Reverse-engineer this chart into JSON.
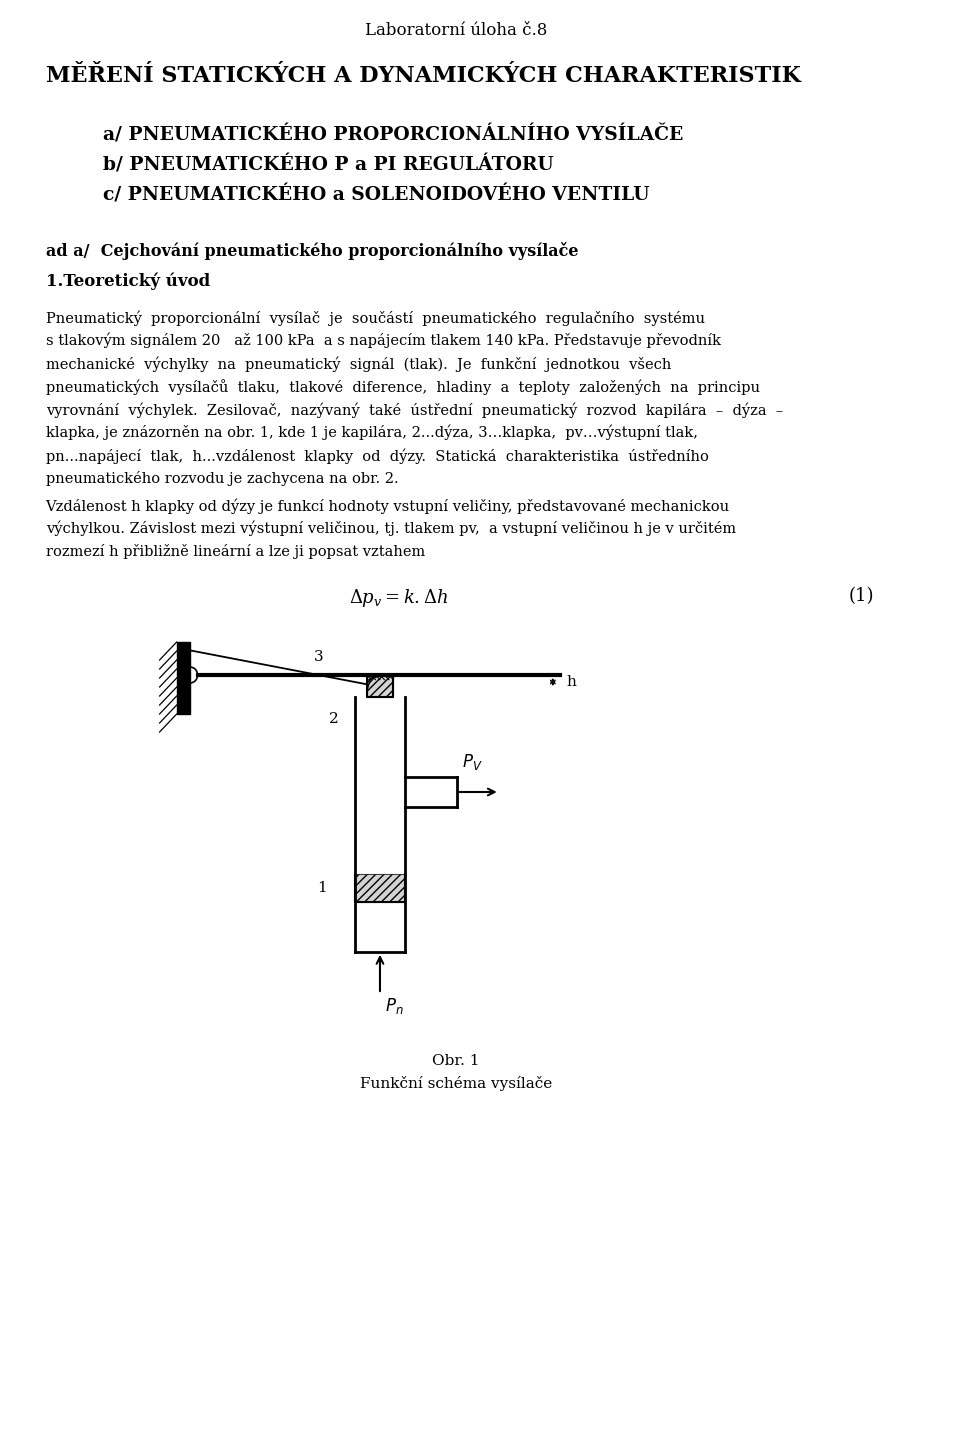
{
  "background_color": "#ffffff",
  "page_width": 9.6,
  "page_height": 14.48,
  "line1": "Laboratorní úloha č.8",
  "line1_size": 12,
  "title1": "MĚŘENÍ STATICKÝCH A DYNAMICKÝCH CHARAKTERISTIK",
  "title1_size": 16,
  "subtitle_a": "a/ PNEUMATICKÉHO PROPORCIONÁLNÍHO VYSÍLAČE",
  "subtitle_b": "b/ PNEUMATICKÉHO P a PI REGULÁTORU",
  "subtitle_c": "c/ PNEUMATICKÉHO a SOLENOIDOVÉHO VENTILU",
  "subtitle_size": 13.5,
  "section_label": "ad a/  Cejchování pneumatického proporcionálního vysílače",
  "section_label_size": 11.5,
  "section_header": "1.Teoretický úvod",
  "section_header_size": 12,
  "para1_lines": [
    "Pneumatický  proporcionální  vysílač  je  součástí  pneumatického  regulačního  systému",
    "s tlakovým signálem 20   až 100 kPa  a s napájecím tlakem 140 kPa. Představuje převodník",
    "mechanické  výchylky  na  pneumatický  signál  (tlak).  Je  funkční  jednotkou  všech",
    "pneumatických  vysílačů  tlaku,  tlakové  diference,  hladiny  a  teploty  založených  na  principu",
    "vyrovnání  výchylek.  Zesilovač,  nazývaný  také  ústřední  pneumatický  rozvod  kapilára  –  dýza  –",
    "klapka, je znázorněn na obr. 1, kde 1 je kapilára, 2...dýza, 3…klapka,  pv…výstupní tlak,",
    "pn...napájecí  tlak,  h...vzdálenost  klapky  od  dýzy.  Statická  charakteristika  ústředního",
    "pneumatického rozvodu je zachycena na obr. 2."
  ],
  "para1_size": 10.5,
  "para2_lines": [
    "Vzdálenost h klapky od dýzy je funkcí hodnoty vstupní veličiny, představované mechanickou",
    "výchylkou. Závislost mezi výstupní veličinou, tj. tlakem pv,  a vstupní veličinou h je v určitém",
    "rozmezí h přibližně lineární a lze ji popsat vztahem"
  ],
  "para2_size": 10.5,
  "formula": "$\\Delta p_v = k.\\Delta h$",
  "formula_size": 13,
  "formula_number": "(1)",
  "caption": "Obr. 1",
  "caption2": "Funkční schéma vysílače",
  "caption_size": 11
}
